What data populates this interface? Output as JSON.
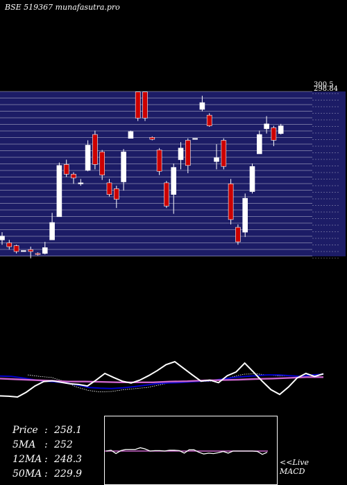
{
  "title": "BSE 519367 munafasutra.pro",
  "price_labels": [
    "300.5",
    "298.84"
  ],
  "stats": [
    {
      "label": "Price",
      "value": "258.1"
    },
    {
      "label": "5MA",
      "value": "252"
    },
    {
      "label": "12MA",
      "value": "248.3"
    },
    {
      "label": "50MA",
      "value": "229.9"
    }
  ],
  "live_label": "<<Live",
  "macd_label": "MACD",
  "colors": {
    "panel_bg": "#1c1c66",
    "grid": "#ffffff",
    "up": "#ffffff",
    "down": "#cc0000",
    "ma_fast": "#ffffff",
    "ma_mid": "#0000cc",
    "ma_slow": "#cc66cc",
    "ma_dotted": "#ffffff"
  },
  "chart_data": {
    "type": "candlestick",
    "ylim": [
      130,
      300.5
    ],
    "candles": [
      {
        "o": 147,
        "c": 151,
        "h": 155,
        "l": 142
      },
      {
        "o": 144,
        "c": 140,
        "h": 147,
        "l": 137
      },
      {
        "o": 141,
        "c": 135,
        "h": 142,
        "l": 133
      },
      {
        "o": 136,
        "c": 136,
        "h": 136,
        "l": 136
      },
      {
        "o": 137,
        "c": 135,
        "h": 140,
        "l": 128
      },
      {
        "o": 133,
        "c": 132,
        "h": 134,
        "l": 131
      },
      {
        "o": 133,
        "c": 139,
        "h": 145,
        "l": 132
      },
      {
        "o": 147,
        "c": 165,
        "h": 175,
        "l": 147
      },
      {
        "o": 171,
        "c": 224,
        "h": 227,
        "l": 171
      },
      {
        "o": 225,
        "c": 215,
        "h": 230,
        "l": 212
      },
      {
        "o": 215,
        "c": 211,
        "h": 217,
        "l": 205
      },
      {
        "o": 206,
        "c": 206,
        "h": 210,
        "l": 203
      },
      {
        "o": 219,
        "c": 245,
        "h": 250,
        "l": 218
      },
      {
        "o": 256,
        "c": 225,
        "h": 260,
        "l": 220
      },
      {
        "o": 238,
        "c": 214,
        "h": 240,
        "l": 209
      },
      {
        "o": 206,
        "c": 194,
        "h": 210,
        "l": 192
      },
      {
        "o": 200,
        "c": 189,
        "h": 203,
        "l": 180
      },
      {
        "o": 207,
        "c": 238,
        "h": 241,
        "l": 198
      },
      {
        "o": 252,
        "c": 259,
        "h": 260,
        "l": 252
      },
      {
        "o": 300,
        "c": 273,
        "h": 300,
        "l": 270
      },
      {
        "o": 300,
        "c": 273,
        "h": 300,
        "l": 270
      },
      {
        "o": 253,
        "c": 251,
        "h": 254,
        "l": 250
      },
      {
        "o": 240,
        "c": 218,
        "h": 242,
        "l": 214
      },
      {
        "o": 206,
        "c": 182,
        "h": 208,
        "l": 180
      },
      {
        "o": 194,
        "c": 222,
        "h": 226,
        "l": 174
      },
      {
        "o": 230,
        "c": 242,
        "h": 248,
        "l": 220
      },
      {
        "o": 250,
        "c": 224,
        "h": 252,
        "l": 216
      },
      {
        "o": 252,
        "c": 252,
        "h": 252,
        "l": 251
      },
      {
        "o": 282,
        "c": 289,
        "h": 296,
        "l": 280
      },
      {
        "o": 276,
        "c": 265,
        "h": 278,
        "l": 264
      },
      {
        "o": 228,
        "c": 232,
        "h": 246,
        "l": 220
      },
      {
        "o": 250,
        "c": 223,
        "h": 252,
        "l": 220
      },
      {
        "o": 205,
        "c": 168,
        "h": 210,
        "l": 163
      },
      {
        "o": 160,
        "c": 145,
        "h": 163,
        "l": 142
      },
      {
        "o": 155,
        "c": 190,
        "h": 195,
        "l": 150
      },
      {
        "o": 197,
        "c": 223,
        "h": 226,
        "l": 195
      },
      {
        "o": 236,
        "c": 256,
        "h": 260,
        "l": 236
      },
      {
        "o": 262,
        "c": 267,
        "h": 275,
        "l": 257
      },
      {
        "o": 263,
        "c": 250,
        "h": 265,
        "l": 244
      },
      {
        "o": 257,
        "c": 265,
        "h": 267,
        "l": 256
      }
    ],
    "ma_panel": {
      "ylim": [
        -8,
        8
      ],
      "fast": [
        -4.5,
        -4.6,
        -4.8,
        -3.5,
        -1.8,
        -0.6,
        -0.4,
        -0.8,
        -1.2,
        -1.4,
        -1.8,
        -0.2,
        1.6,
        0.5,
        -0.5,
        -1.0,
        -0.2,
        1.0,
        2.4,
        4.0,
        4.8,
        3.0,
        1.2,
        -0.5,
        -0.2,
        -0.9,
        1.0,
        2.0,
        4.4,
        2.0,
        -0.5,
        -2.8,
        -4.1,
        -2.1,
        0.4,
        1.6,
        0.8,
        1.5
      ],
      "mid": [
        0.9,
        0.8,
        0.4,
        -0.1,
        -0.5,
        -0.7,
        -1.0,
        -1.6,
        -2.2,
        -2.4,
        -2.5,
        -2.3,
        -2.0,
        -1.6,
        -1.2,
        -1.0,
        -0.9,
        -0.7,
        -0.5,
        -0.3,
        0.1,
        0.5,
        0.8,
        1.0,
        1.2,
        1.2,
        1.0,
        0.8,
        1.2,
        1.4
      ],
      "slow": [
        0.2,
        0.0,
        -0.2,
        -0.4,
        -0.6,
        -0.6,
        -0.7,
        -0.8,
        -0.8,
        -0.8,
        -0.6,
        -0.5,
        -0.3,
        -0.2,
        -0.1,
        0.1,
        0.2,
        0.4,
        0.6,
        0.6
      ],
      "dotted": [
        1.2,
        0.8,
        0.5,
        -0.5,
        -2.0,
        -3.0,
        -3.4,
        -3.3,
        -2.8,
        -2.5,
        -2.2,
        -1.5,
        -0.8,
        -0.5,
        -0.5,
        -0.6,
        -0.3,
        0.6,
        1.4,
        1.5,
        1.2,
        0.9,
        1.0
      ]
    },
    "macd": {
      "ylim": [
        -4,
        4
      ],
      "signal": 1.0,
      "line": [
        1.0,
        1.2,
        0.4,
        1.1,
        1.4,
        1.4,
        1.4,
        1.8,
        1.5,
        1.0,
        1.1,
        1.1,
        1.0,
        1.2,
        1.2,
        1.1,
        0.5,
        1.3,
        1.3,
        0.7,
        0.3,
        0.5,
        0.4,
        0.6,
        0.9,
        0.5,
        1.0,
        1.0,
        1.0,
        1.0,
        1.0,
        0.9,
        0.2,
        0.7
      ]
    }
  }
}
